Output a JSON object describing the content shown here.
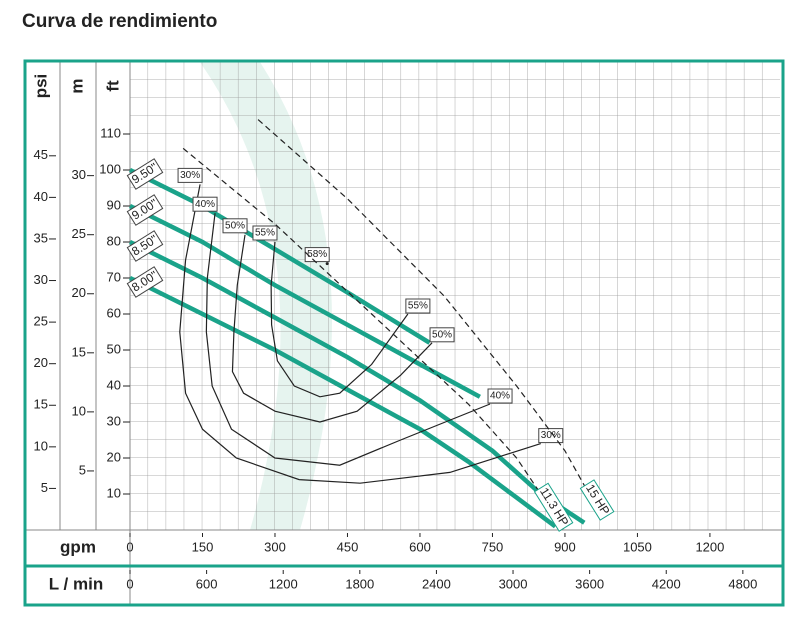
{
  "chart_data": {
    "type": "line",
    "title": "Curva de rendimiento",
    "x_label": "gpm",
    "x2_label": "L / min",
    "y_label": "ft",
    "y2_label": "psi",
    "y3_label": "m",
    "xlim": [
      0,
      1345
    ],
    "xticks": [
      0,
      150,
      300,
      450,
      600,
      750,
      900,
      1050,
      1200
    ],
    "x2lim": [
      0,
      5091
    ],
    "x2ticks": [
      0,
      600,
      1200,
      1800,
      2400,
      3000,
      3600,
      4200,
      4800
    ],
    "ylim": [
      0,
      130
    ],
    "yticks": [
      10,
      20,
      30,
      40,
      50,
      60,
      70,
      80,
      90,
      100,
      110
    ],
    "y2lim": [
      0,
      56.28
    ],
    "y2ticks": [
      5,
      10,
      15,
      20,
      25,
      30,
      35,
      40,
      45
    ],
    "y3lim": [
      0,
      39.62
    ],
    "y3ticks": [
      5,
      10,
      15,
      20,
      25,
      30
    ],
    "grid": true,
    "series": [
      {
        "name": "9.50\"",
        "style": "impeller",
        "color": "#1aa38a",
        "x": [
          0,
          150,
          300,
          450,
          620
        ],
        "values": [
          100,
          90,
          78,
          66,
          52
        ]
      },
      {
        "name": "9.00\"",
        "style": "impeller",
        "color": "#1aa38a",
        "x": [
          0,
          150,
          300,
          450,
          600,
          724
        ],
        "values": [
          90,
          80,
          68,
          57,
          46,
          37
        ]
      },
      {
        "name": "8.50\"",
        "style": "impeller",
        "color": "#1aa38a",
        "x": [
          0,
          150,
          300,
          450,
          600,
          750,
          850,
          940
        ],
        "values": [
          80,
          70,
          59,
          48,
          36,
          22,
          10,
          2
        ]
      },
      {
        "name": "8.00\"",
        "style": "impeller",
        "color": "#1aa38a",
        "x": [
          0,
          150,
          300,
          450,
          600,
          700,
          800,
          880
        ],
        "values": [
          70,
          60,
          50,
          39,
          28,
          19,
          9,
          1
        ]
      },
      {
        "name": "30%",
        "style": "efficiency",
        "color": "#222222",
        "x": [
          145,
          115,
          103,
          115,
          150,
          220,
          350,
          476,
          662,
          850
        ],
        "values": [
          96,
          75,
          55,
          38,
          28,
          20,
          14,
          13,
          16,
          24
        ]
      },
      {
        "name": "40%",
        "style": "efficiency",
        "color": "#222222",
        "x": [
          176,
          160,
          158,
          170,
          210,
          300,
          434,
          560,
          745
        ],
        "values": [
          88,
          70,
          55,
          40,
          28,
          20,
          18,
          25,
          35
        ]
      },
      {
        "name": "50%",
        "style": "efficiency",
        "color": "#222222",
        "x": [
          238,
          222,
          215,
          212,
          235,
          300,
          393,
          470,
          560,
          625
        ],
        "values": [
          82,
          68,
          55,
          44,
          38,
          33,
          30,
          33,
          43,
          52
        ]
      },
      {
        "name": "55%",
        "style": "efficiency",
        "color": "#222222",
        "x": [
          300,
          292,
          293,
          305,
          340,
          393,
          434,
          500,
          575
        ],
        "values": [
          80,
          68,
          57,
          47,
          40,
          37,
          38,
          46,
          60
        ]
      },
      {
        "name": "58%",
        "style": "efficiency",
        "color": "#222222",
        "x": [
          408
        ],
        "values": [
          74
        ]
      },
      {
        "name": "11.3 HP",
        "style": "power",
        "color": "#222222",
        "x": [
          110,
          300,
          500,
          700,
          800,
          860
        ],
        "values": [
          106,
          85,
          60,
          35,
          20,
          8
        ]
      },
      {
        "name": "15 HP",
        "style": "power",
        "color": "#222222",
        "x": [
          265,
          450,
          650,
          800,
          900,
          950
        ],
        "values": [
          114,
          92,
          65,
          40,
          22,
          10
        ]
      }
    ]
  }
}
